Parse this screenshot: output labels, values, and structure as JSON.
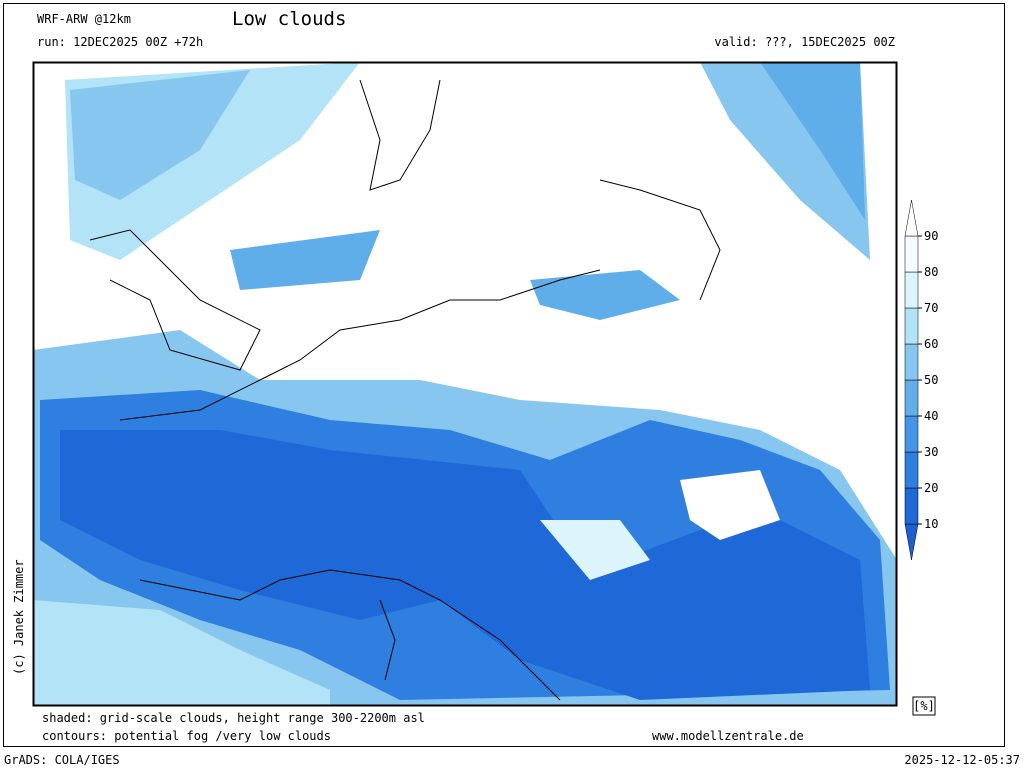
{
  "header": {
    "model": "WRF-ARW @12km",
    "title": "Low clouds",
    "run": "run: 12DEC2025 00Z +72h",
    "valid": "valid: ???, 15DEC2025 00Z"
  },
  "credit": "(c) Janek Zimmer",
  "colorbar": {
    "unit": "[%]",
    "ticks": [
      10,
      20,
      30,
      40,
      50,
      60,
      70,
      80,
      90
    ],
    "colors": [
      "#1c5fd2",
      "#1f68d8",
      "#2e7fe0",
      "#4595e6",
      "#5fade9",
      "#87c6ee",
      "#b2e3f6",
      "#dcf4fb",
      "#f4fcff",
      "#ffffff"
    ]
  },
  "footer": {
    "shaded": "shaded: grid-scale clouds, height range 300-2200m asl",
    "contours": "contours: potential fog /very low clouds",
    "website": "www.modellzentrale.de",
    "software": "GrADS: COLA/IGES",
    "timestamp": "2025-12-12-05:37"
  }
}
